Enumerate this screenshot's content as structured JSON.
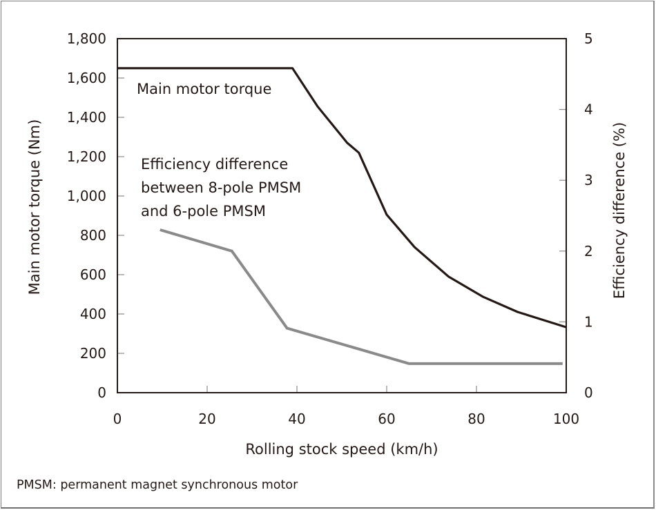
{
  "chart_data": {
    "type": "line",
    "title": "",
    "xlabel": "Rolling stock speed (km/h)",
    "ylabel": "Main motor torque (Nm)",
    "y2label": "Efficiency difference (%)",
    "xlim": [
      0,
      100
    ],
    "ylim": [
      0,
      1800
    ],
    "y2lim": [
      0,
      5
    ],
    "x_ticks": [
      "0",
      "20",
      "40",
      "60",
      "80",
      "100"
    ],
    "x_tick_values": [
      0,
      20,
      40,
      60,
      80,
      100
    ],
    "y_ticks": [
      "0",
      "200",
      "400",
      "600",
      "800",
      "1,000",
      "1,200",
      "1,400",
      "1,600",
      "1,800"
    ],
    "y_tick_values": [
      0,
      200,
      400,
      600,
      800,
      1000,
      1200,
      1400,
      1600,
      1800
    ],
    "y2_ticks": [
      "0",
      "1",
      "2",
      "3",
      "4",
      "5"
    ],
    "y2_tick_values": [
      0,
      1,
      2,
      3,
      4,
      5
    ],
    "grid": false,
    "series": [
      {
        "name": "Main motor torque",
        "axis": "left",
        "color": "#231815",
        "x": [
          0,
          39,
          44.6,
          51.2,
          53.8,
          60,
          66.2,
          73.8,
          81.5,
          89.2,
          100
        ],
        "y": [
          1650,
          1650,
          1455,
          1270,
          1220,
          905,
          740,
          590,
          487,
          410,
          333
        ]
      },
      {
        "name": "Efficiency difference between 8-pole PMSM and 6-pole PMSM",
        "axis": "right",
        "color": "#8a8a8a",
        "x": [
          9.5,
          25.5,
          37.8,
          65,
          99.2
        ],
        "y": [
          2.3,
          2.0,
          0.91,
          0.41,
          0.41
        ]
      }
    ],
    "annotations": [
      {
        "text": "Main motor torque",
        "series": 0
      },
      {
        "lines": [
          "Efficiency difference",
          "between 8-pole PMSM",
          "and 6-pole PMSM"
        ],
        "series": 1
      }
    ]
  },
  "caption": "PMSM: permanent magnet synchronous motor"
}
